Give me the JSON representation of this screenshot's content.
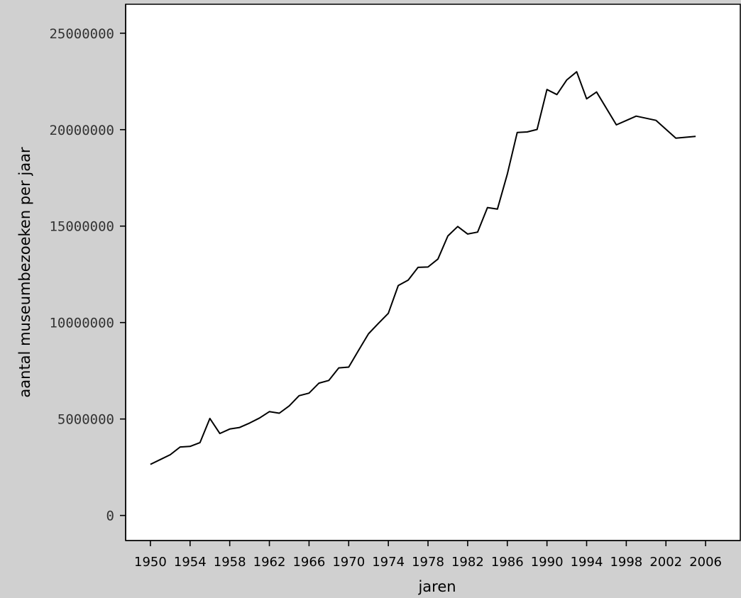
{
  "chart_data": {
    "type": "line",
    "title": "",
    "xlabel": "jaren",
    "ylabel": "aantal museumbezoeken per jaar",
    "xlim": [
      1947.5,
      2009.5
    ],
    "ylim": [
      -1300000,
      26500000
    ],
    "x_ticks": [
      1950,
      1954,
      1958,
      1962,
      1966,
      1970,
      1974,
      1978,
      1982,
      1986,
      1990,
      1994,
      1998,
      2002,
      2006
    ],
    "y_ticks": [
      0,
      5000000,
      10000000,
      15000000,
      20000000,
      25000000
    ],
    "x_tick_labels": [
      "1950",
      "1954",
      "1958",
      "1962",
      "1966",
      "1970",
      "1974",
      "1978",
      "1982",
      "1986",
      "1990",
      "1994",
      "1998",
      "2002",
      "2006"
    ],
    "y_tick_labels": [
      "0",
      "5000000",
      "10000000",
      "15000000",
      "20000000",
      "25000000"
    ],
    "grid": false,
    "series": [
      {
        "x": [
          1950,
          1951,
          1952,
          1953,
          1954,
          1955,
          1956,
          1957,
          1958,
          1959,
          1960,
          1961,
          1962,
          1963,
          1964,
          1965,
          1966,
          1967,
          1968,
          1969,
          1970,
          1971,
          1972,
          1973,
          1974,
          1975,
          1976,
          1977,
          1978,
          1979,
          1980,
          1981,
          1982,
          1983,
          1984,
          1985,
          1986,
          1987,
          1988,
          1989,
          1990,
          1991,
          1992,
          1993,
          1994,
          1995,
          1997,
          1999,
          2001,
          2003,
          2005
        ],
        "y": [
          2650000,
          2900000,
          3150000,
          3550000,
          3580000,
          3780000,
          5030000,
          4250000,
          4480000,
          4560000,
          4790000,
          5050000,
          5380000,
          5300000,
          5680000,
          6210000,
          6340000,
          6860000,
          7000000,
          7650000,
          7690000,
          8560000,
          9420000,
          9960000,
          10480000,
          11920000,
          12200000,
          12860000,
          12880000,
          13290000,
          14490000,
          14980000,
          14590000,
          14690000,
          15960000,
          15880000,
          17700000,
          19850000,
          19880000,
          20010000,
          22080000,
          21820000,
          22580000,
          23000000,
          21600000,
          21950000,
          20250000,
          20700000,
          20480000,
          19560000,
          19650000
        ]
      }
    ],
    "colors": {
      "frame": "#d0d0d0",
      "plot_background": "#ffffff",
      "line": "#000000"
    }
  }
}
